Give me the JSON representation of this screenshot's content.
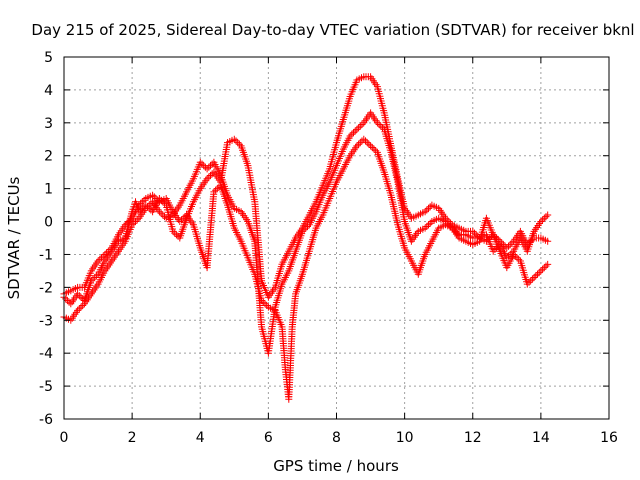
{
  "chart_data": {
    "type": "scatter",
    "title": "Day 215 of 2025, Sidereal Day-to-day VTEC variation (SDTVAR) for receiver bknl",
    "xlabel": "GPS time / hours",
    "ylabel": "SDTVAR / TECUs",
    "xlim": [
      0,
      16
    ],
    "ylim": [
      -6,
      5
    ],
    "xticks": [
      "0",
      "2",
      "4",
      "6",
      "8",
      "10",
      "12",
      "14",
      "16"
    ],
    "yticks": [
      "-6",
      "-5",
      "-4",
      "-3",
      "-2",
      "-1",
      "0",
      "1",
      "2",
      "3",
      "4",
      "5"
    ],
    "grid": true,
    "legend": "none",
    "marker": "plus",
    "color": "#ff0000",
    "series": [
      {
        "points": [
          [
            0.0,
            -2.3
          ],
          [
            0.2,
            -2.5
          ],
          [
            0.4,
            -2.2
          ],
          [
            0.6,
            -2.4
          ],
          [
            0.8,
            -1.8
          ],
          [
            1.0,
            -1.6
          ],
          [
            1.2,
            -1.2
          ],
          [
            1.4,
            -0.9
          ],
          [
            1.6,
            -0.6
          ],
          [
            1.8,
            -0.5
          ],
          [
            1.9,
            -0.1
          ],
          [
            2.0,
            0.3
          ],
          [
            2.1,
            0.6
          ],
          [
            2.2,
            0.3
          ],
          [
            2.4,
            0.5
          ],
          [
            2.6,
            0.3
          ],
          [
            2.8,
            0.7
          ],
          [
            3.0,
            0.5
          ],
          [
            3.2,
            -0.3
          ],
          [
            3.4,
            -0.5
          ],
          [
            3.6,
            0.1
          ],
          [
            3.8,
            0.6
          ],
          [
            4.0,
            1.0
          ],
          [
            4.2,
            1.3
          ],
          [
            4.4,
            1.5
          ],
          [
            4.6,
            1.2
          ],
          [
            4.8,
            2.4
          ],
          [
            5.0,
            2.5
          ],
          [
            5.2,
            2.3
          ],
          [
            5.4,
            1.7
          ],
          [
            5.6,
            0.6
          ],
          [
            5.8,
            -1.8
          ],
          [
            6.0,
            -2.3
          ],
          [
            6.2,
            -2.0
          ],
          [
            6.4,
            -1.3
          ],
          [
            6.6,
            -0.9
          ],
          [
            6.8,
            -0.5
          ],
          [
            7.0,
            -0.2
          ],
          [
            7.2,
            0.2
          ],
          [
            7.4,
            0.6
          ],
          [
            7.6,
            1.1
          ],
          [
            7.8,
            1.6
          ],
          [
            8.0,
            2.4
          ],
          [
            8.2,
            3.1
          ],
          [
            8.4,
            3.8
          ],
          [
            8.6,
            4.3
          ],
          [
            8.8,
            4.4
          ],
          [
            9.0,
            4.4
          ],
          [
            9.2,
            4.1
          ],
          [
            9.4,
            3.3
          ],
          [
            9.6,
            2.3
          ],
          [
            9.8,
            1.3
          ],
          [
            10.0,
            0.4
          ],
          [
            10.2,
            0.1
          ],
          [
            10.4,
            0.2
          ],
          [
            10.6,
            0.3
          ],
          [
            10.8,
            0.5
          ],
          [
            11.0,
            0.4
          ],
          [
            11.2,
            0.1
          ],
          [
            11.4,
            -0.1
          ],
          [
            11.6,
            -0.2
          ],
          [
            11.8,
            -0.3
          ],
          [
            12.0,
            -0.3
          ],
          [
            12.2,
            -0.5
          ],
          [
            12.4,
            -0.6
          ],
          [
            12.6,
            -0.4
          ],
          [
            12.8,
            -0.6
          ],
          [
            13.0,
            -0.8
          ],
          [
            13.2,
            -0.6
          ],
          [
            13.4,
            -0.3
          ],
          [
            13.6,
            -0.7
          ],
          [
            13.8,
            -0.5
          ],
          [
            14.0,
            -0.5
          ],
          [
            14.2,
            -0.6
          ]
        ]
      },
      {
        "points": [
          [
            0.0,
            -2.9
          ],
          [
            0.2,
            -3.0
          ],
          [
            0.4,
            -2.7
          ],
          [
            0.6,
            -2.5
          ],
          [
            0.8,
            -2.2
          ],
          [
            1.0,
            -1.9
          ],
          [
            1.2,
            -1.5
          ],
          [
            1.4,
            -1.2
          ],
          [
            1.6,
            -0.9
          ],
          [
            1.8,
            -0.6
          ],
          [
            2.0,
            -0.1
          ],
          [
            2.2,
            0.1
          ],
          [
            2.4,
            0.4
          ],
          [
            2.6,
            0.6
          ],
          [
            2.8,
            0.3
          ],
          [
            3.0,
            0.1
          ],
          [
            3.2,
            0.2
          ],
          [
            3.4,
            0.5
          ],
          [
            3.6,
            0.9
          ],
          [
            3.8,
            1.3
          ],
          [
            4.0,
            1.8
          ],
          [
            4.2,
            1.6
          ],
          [
            4.4,
            1.8
          ],
          [
            4.6,
            1.4
          ],
          [
            4.8,
            0.8
          ],
          [
            5.0,
            0.4
          ],
          [
            5.2,
            0.3
          ],
          [
            5.4,
            0.0
          ],
          [
            5.6,
            -0.6
          ],
          [
            5.8,
            -3.2
          ],
          [
            6.0,
            -4.0
          ],
          [
            6.2,
            -2.6
          ],
          [
            6.4,
            -1.9
          ],
          [
            6.6,
            -1.5
          ],
          [
            6.8,
            -0.9
          ],
          [
            7.0,
            -0.3
          ],
          [
            7.2,
            -0.1
          ],
          [
            7.4,
            0.3
          ],
          [
            7.6,
            0.8
          ],
          [
            7.8,
            1.2
          ],
          [
            8.0,
            1.7
          ],
          [
            8.2,
            2.2
          ],
          [
            8.4,
            2.6
          ],
          [
            8.6,
            2.8
          ],
          [
            8.8,
            3.0
          ],
          [
            9.0,
            3.3
          ],
          [
            9.2,
            3.0
          ],
          [
            9.4,
            2.8
          ],
          [
            9.6,
            2.1
          ],
          [
            9.8,
            1.2
          ],
          [
            10.0,
            0.0
          ],
          [
            10.2,
            -0.6
          ],
          [
            10.4,
            -0.3
          ],
          [
            10.6,
            -0.2
          ],
          [
            10.8,
            0.0
          ],
          [
            11.0,
            0.1
          ],
          [
            11.2,
            0.0
          ],
          [
            11.4,
            -0.2
          ],
          [
            11.6,
            -0.4
          ],
          [
            11.8,
            -0.4
          ],
          [
            12.0,
            -0.5
          ],
          [
            12.2,
            -0.5
          ],
          [
            12.4,
            -0.4
          ],
          [
            12.6,
            -0.9
          ],
          [
            12.8,
            -0.7
          ],
          [
            13.0,
            -1.1
          ],
          [
            13.2,
            -0.9
          ],
          [
            13.4,
            -0.5
          ],
          [
            13.6,
            -0.9
          ],
          [
            13.8,
            -0.3
          ],
          [
            14.0,
            0.0
          ],
          [
            14.2,
            0.2
          ]
        ]
      },
      {
        "points": [
          [
            0.0,
            -2.2
          ],
          [
            0.2,
            -2.1
          ],
          [
            0.4,
            -2.0
          ],
          [
            0.6,
            -2.0
          ],
          [
            0.8,
            -1.5
          ],
          [
            1.0,
            -1.2
          ],
          [
            1.2,
            -1.0
          ],
          [
            1.4,
            -0.8
          ],
          [
            1.6,
            -0.4
          ],
          [
            1.8,
            -0.1
          ],
          [
            2.0,
            0.1
          ],
          [
            2.2,
            0.5
          ],
          [
            2.4,
            0.7
          ],
          [
            2.6,
            0.8
          ],
          [
            2.8,
            0.6
          ],
          [
            3.0,
            0.7
          ],
          [
            3.2,
            0.3
          ],
          [
            3.4,
            0.0
          ],
          [
            3.6,
            0.2
          ],
          [
            3.8,
            -0.1
          ],
          [
            4.0,
            -0.8
          ],
          [
            4.2,
            -1.4
          ],
          [
            4.4,
            0.9
          ],
          [
            4.6,
            1.1
          ],
          [
            4.8,
            0.5
          ],
          [
            5.0,
            -0.2
          ],
          [
            5.2,
            -0.6
          ],
          [
            5.4,
            -1.1
          ],
          [
            5.6,
            -1.6
          ],
          [
            5.8,
            -2.4
          ],
          [
            6.0,
            -2.6
          ],
          [
            6.2,
            -2.7
          ],
          [
            6.4,
            -3.2
          ],
          [
            6.5,
            -4.5
          ],
          [
            6.6,
            -5.4
          ],
          [
            6.7,
            -3.2
          ],
          [
            6.8,
            -2.2
          ],
          [
            7.0,
            -1.6
          ],
          [
            7.2,
            -0.9
          ],
          [
            7.4,
            -0.2
          ],
          [
            7.6,
            0.2
          ],
          [
            7.8,
            0.7
          ],
          [
            8.0,
            1.2
          ],
          [
            8.2,
            1.6
          ],
          [
            8.4,
            2.0
          ],
          [
            8.6,
            2.3
          ],
          [
            8.8,
            2.5
          ],
          [
            9.0,
            2.3
          ],
          [
            9.2,
            2.1
          ],
          [
            9.4,
            1.5
          ],
          [
            9.6,
            0.8
          ],
          [
            9.8,
            -0.1
          ],
          [
            10.0,
            -0.8
          ],
          [
            10.2,
            -1.2
          ],
          [
            10.4,
            -1.6
          ],
          [
            10.6,
            -1.0
          ],
          [
            10.8,
            -0.6
          ],
          [
            11.0,
            -0.2
          ],
          [
            11.2,
            -0.1
          ],
          [
            11.4,
            -0.2
          ],
          [
            11.6,
            -0.5
          ],
          [
            11.8,
            -0.6
          ],
          [
            12.0,
            -0.7
          ],
          [
            12.2,
            -0.6
          ],
          [
            12.4,
            0.1
          ],
          [
            12.6,
            -0.4
          ],
          [
            12.8,
            -0.9
          ],
          [
            13.0,
            -1.4
          ],
          [
            13.2,
            -1.0
          ],
          [
            13.4,
            -1.2
          ],
          [
            13.6,
            -1.9
          ],
          [
            13.8,
            -1.7
          ],
          [
            14.0,
            -1.5
          ],
          [
            14.2,
            -1.3
          ]
        ]
      }
    ]
  }
}
